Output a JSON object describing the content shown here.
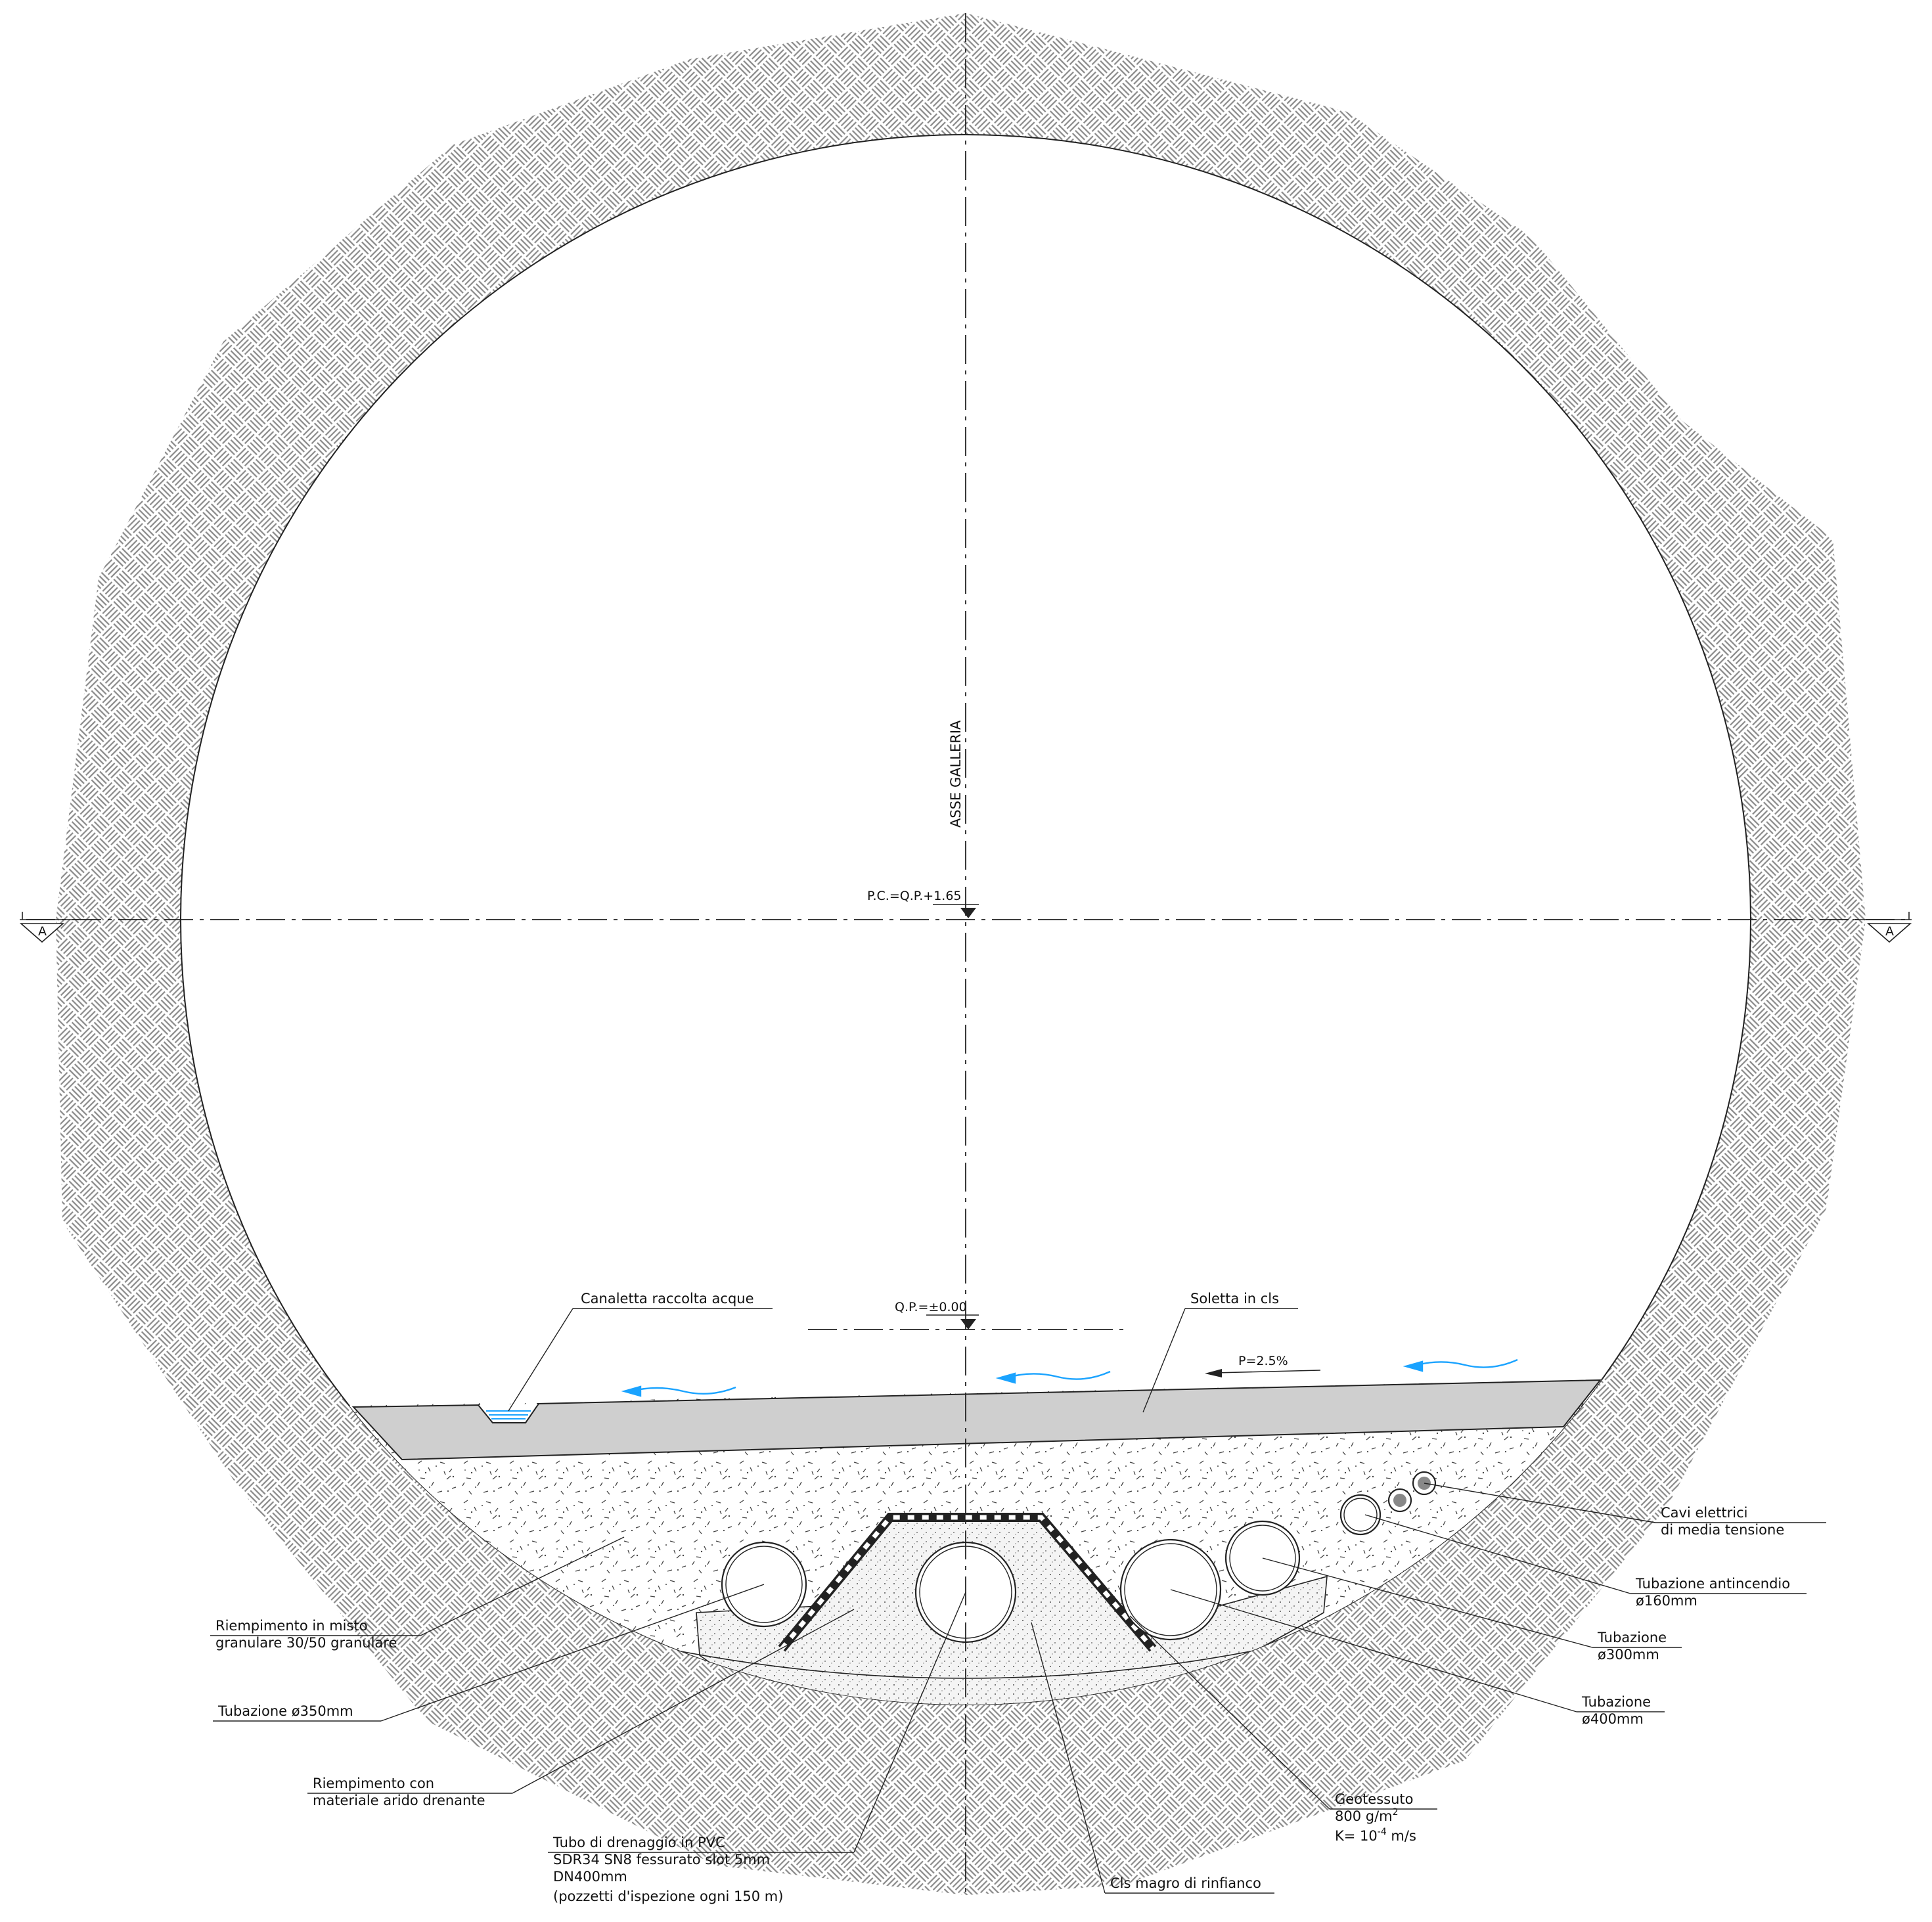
{
  "drawing": {
    "axis_label": "ASSE GALLERIA",
    "pc_level": "P.C.=Q.P.+1.65",
    "qp_level": "Q.P.=±0.00",
    "section_marker": "A",
    "slope": "P=2.5%"
  },
  "labels": {
    "canaletta": "Canaletta raccolta acque",
    "soletta": "Soletta in cls",
    "cavi_1": "Cavi elettrici",
    "cavi_2": "di media tensione",
    "antincendio_1": "Tubazione antincendio",
    "antincendio_2": "ø160mm",
    "tub300_1": "Tubazione",
    "tub300_2": "ø300mm",
    "tub400_1": "Tubazione",
    "tub400_2": "ø400mm",
    "geotessuto_1": "Geotessuto",
    "geotessuto_2": "800 g/m",
    "geotessuto_2_sup": "2",
    "geotessuto_3": "K= 10",
    "geotessuto_3_sup": "-4",
    "geotessuto_3_unit": " m/s",
    "cls_magro": "Cls magro di rinfianco",
    "tubo_dren_1": "Tubo di drenaggio in PVC",
    "tubo_dren_2": "SDR34 SN8 fessurato slot 5mm",
    "tubo_dren_3": "DN400mm",
    "tubo_dren_4": "(pozzetti d'ispezione ogni 150 m)",
    "riemp_arido_1": "Riempimento con",
    "riemp_arido_2": "materiale arido drenante",
    "tub350": "Tubazione ø350mm",
    "riemp_misto_1": "Riempimento in misto",
    "riemp_misto_2": "granulare 30/50 granulare"
  },
  "colors": {
    "rock_hatch": "#8a8a8a",
    "slab": "#cfcfcf",
    "water": "#1aa3ff",
    "line": "#222222"
  }
}
